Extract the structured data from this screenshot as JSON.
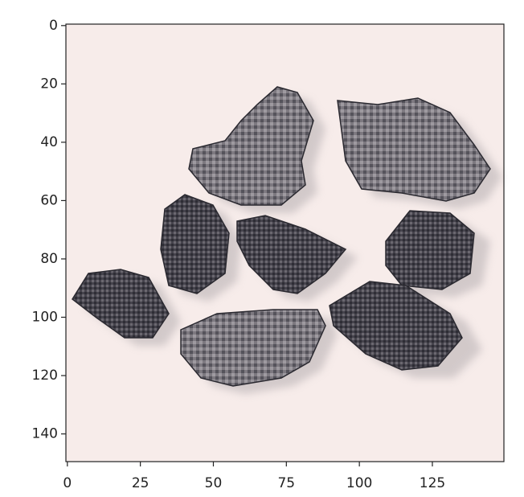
{
  "chart_data": {
    "type": "image",
    "xlim": [
      -0.5,
      149.5
    ],
    "ylim": [
      149.5,
      -0.5
    ],
    "xticks": [
      0,
      25,
      50,
      75,
      100,
      125
    ],
    "yticks": [
      0,
      20,
      40,
      60,
      80,
      100,
      120,
      140
    ]
  }
}
